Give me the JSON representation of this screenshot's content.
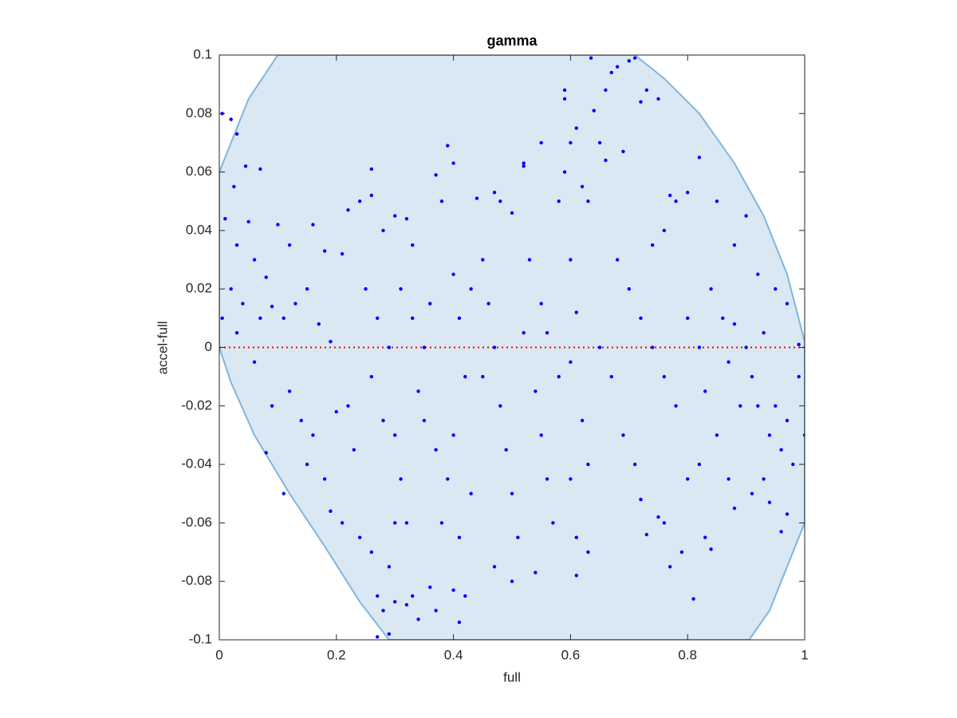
{
  "chart_data": {
    "type": "scatter",
    "title": "gamma",
    "x_label": "full",
    "y_label": "accel-full",
    "xlim": [
      0,
      1
    ],
    "ylim": [
      -0.1,
      0.1
    ],
    "xticks": [
      0,
      0.2,
      0.4,
      0.6,
      0.8,
      1
    ],
    "yticks": [
      -0.1,
      -0.08,
      -0.06,
      -0.04,
      -0.02,
      0,
      0.02,
      0.04,
      0.06,
      0.08,
      0.1
    ],
    "grid": false,
    "region": {
      "color": "#d9e8f3",
      "edge_color": "#7fb5de",
      "x": [
        0,
        0.02,
        0.05,
        0.1,
        0.71,
        0.76,
        0.82,
        0.88,
        0.93,
        0.97,
        1,
        1,
        0.97,
        0.94,
        0.905,
        0.29,
        0.24,
        0.18,
        0.12,
        0.06,
        0.02,
        0
      ],
      "y": [
        0.06,
        0.07,
        0.085,
        0.1,
        0.1,
        0.092,
        0.08,
        0.063,
        0.045,
        0.025,
        0.002,
        -0.06,
        -0.075,
        -0.09,
        -0.1,
        -0.1,
        -0.087,
        -0.068,
        -0.05,
        -0.03,
        -0.012,
        0
      ]
    },
    "reference_line": {
      "value": 0,
      "color": "#ff0000",
      "style": "dotted"
    },
    "series": [
      {
        "color": "#0000ff",
        "x": [
          0.005,
          0.02,
          0.03,
          0.025,
          0.045,
          0.07,
          0.01,
          0.03,
          0.05,
          0.06,
          0.08,
          0.1,
          0.12,
          0.16,
          0.18,
          0.21,
          0.02,
          0.04,
          0.07,
          0.09,
          0.11,
          0.13,
          0.15,
          0.17,
          0.19,
          0.005,
          0.03,
          0.06,
          0.09,
          0.12,
          0.14,
          0.16,
          0.18,
          0.2,
          0.22,
          0.23,
          0.19,
          0.21,
          0.24,
          0.26,
          0.27,
          0.28,
          0.27,
          0.29,
          0.11,
          0.08,
          0.15,
          0.22,
          0.24,
          0.26,
          0.26,
          0.25,
          0.27,
          0.29,
          0.26,
          0.28,
          0.3,
          0.31,
          0.3,
          0.32,
          0.29,
          0.3,
          0.32,
          0.33,
          0.34,
          0.36,
          0.37,
          0.41,
          0.4,
          0.42,
          0.28,
          0.3,
          0.32,
          0.33,
          0.31,
          0.33,
          0.35,
          0.34,
          0.35,
          0.37,
          0.38,
          0.39,
          0.4,
          0.4,
          0.41,
          0.42,
          0.4,
          0.39,
          0.38,
          0.41,
          0.43,
          0.44,
          0.47,
          0.48,
          0.5,
          0.45,
          0.46,
          0.47,
          0.48,
          0.49,
          0.5,
          0.51,
          0.5,
          0.47,
          0.52,
          0.52,
          0.55,
          0.53,
          0.55,
          0.56,
          0.54,
          0.55,
          0.56,
          0.57,
          0.54,
          0.58,
          0.59,
          0.59,
          0.6,
          0.59,
          0.61,
          0.6,
          0.61,
          0.6,
          0.62,
          0.6,
          0.61,
          0.61,
          0.63,
          0.62,
          0.63,
          0.635,
          0.64,
          0.66,
          0.67,
          0.68,
          0.7,
          0.71,
          0.65,
          0.66,
          0.69,
          0.72,
          0.73,
          0.75,
          0.68,
          0.7,
          0.72,
          0.74,
          0.76,
          0.78,
          0.77,
          0.8,
          0.82,
          0.85,
          0.88,
          0.9,
          0.92,
          0.67,
          0.69,
          0.71,
          0.72,
          0.73,
          0.75,
          0.77,
          0.76,
          0.79,
          0.81,
          0.8,
          0.82,
          0.84,
          0.83,
          0.8,
          0.82,
          0.84,
          0.86,
          0.87,
          0.88,
          0.9,
          0.89,
          0.91,
          0.93,
          0.92,
          0.94,
          0.95,
          0.96,
          0.97,
          0.98,
          0.99,
          1.0,
          0.99,
          0.97,
          0.95,
          0.93,
          0.91,
          0.88,
          0.94,
          0.96,
          0.97,
          0.85,
          0.87,
          0.83,
          0.78,
          0.76,
          0.74,
          0.65,
          0.63,
          0.58,
          0.52,
          0.45,
          0.43,
          0.36,
          0.37
        ],
        "values": [
          0.08,
          0.078,
          0.073,
          0.055,
          0.062,
          0.061,
          0.044,
          0.035,
          0.043,
          0.03,
          0.024,
          0.042,
          0.035,
          0.042,
          0.033,
          0.032,
          0.02,
          0.015,
          0.01,
          0.014,
          0.01,
          0.015,
          0.02,
          0.008,
          0.002,
          0.01,
          0.005,
          -0.005,
          -0.02,
          -0.015,
          -0.025,
          -0.03,
          -0.045,
          -0.022,
          -0.02,
          -0.035,
          -0.056,
          -0.06,
          -0.065,
          -0.07,
          -0.085,
          -0.09,
          -0.099,
          -0.098,
          -0.05,
          -0.036,
          -0.04,
          0.047,
          0.05,
          0.061,
          0.052,
          0.02,
          0.01,
          0.0,
          -0.01,
          -0.025,
          -0.03,
          -0.045,
          -0.06,
          -0.06,
          -0.075,
          -0.087,
          -0.088,
          -0.085,
          -0.093,
          -0.082,
          -0.09,
          -0.094,
          -0.083,
          -0.085,
          0.04,
          0.045,
          0.044,
          0.035,
          0.02,
          0.01,
          0.0,
          -0.015,
          -0.025,
          0.059,
          0.05,
          0.069,
          0.063,
          0.025,
          0.01,
          -0.01,
          -0.03,
          -0.045,
          -0.06,
          -0.065,
          -0.05,
          0.051,
          0.053,
          0.05,
          0.046,
          0.03,
          0.015,
          0.0,
          -0.02,
          -0.035,
          -0.05,
          -0.065,
          -0.08,
          -0.075,
          0.062,
          0.063,
          0.07,
          0.03,
          0.015,
          0.005,
          -0.015,
          -0.03,
          -0.045,
          -0.06,
          -0.077,
          0.05,
          0.088,
          0.085,
          0.07,
          0.06,
          0.075,
          0.03,
          0.012,
          -0.005,
          -0.025,
          -0.045,
          -0.065,
          -0.078,
          -0.07,
          0.055,
          0.05,
          0.099,
          0.081,
          0.088,
          0.094,
          0.096,
          0.098,
          0.099,
          0.07,
          0.064,
          0.067,
          0.084,
          0.088,
          0.085,
          0.03,
          0.02,
          0.01,
          0.035,
          0.04,
          0.05,
          0.052,
          0.053,
          0.065,
          0.05,
          0.035,
          0.045,
          0.025,
          -0.01,
          -0.03,
          -0.04,
          -0.052,
          -0.064,
          -0.058,
          -0.075,
          -0.06,
          -0.07,
          -0.086,
          -0.045,
          -0.04,
          -0.069,
          -0.065,
          0.01,
          0.0,
          0.02,
          0.01,
          -0.005,
          0.008,
          0.0,
          -0.02,
          -0.01,
          0.005,
          -0.02,
          -0.03,
          -0.02,
          -0.035,
          -0.025,
          -0.04,
          -0.01,
          -0.03,
          0.001,
          0.015,
          0.02,
          -0.045,
          -0.05,
          -0.055,
          -0.053,
          -0.063,
          -0.057,
          -0.03,
          -0.045,
          -0.015,
          -0.02,
          -0.01,
          0.0,
          0.0,
          -0.04,
          -0.01,
          0.005,
          -0.01,
          0.02,
          0.015,
          -0.035
        ]
      }
    ]
  }
}
